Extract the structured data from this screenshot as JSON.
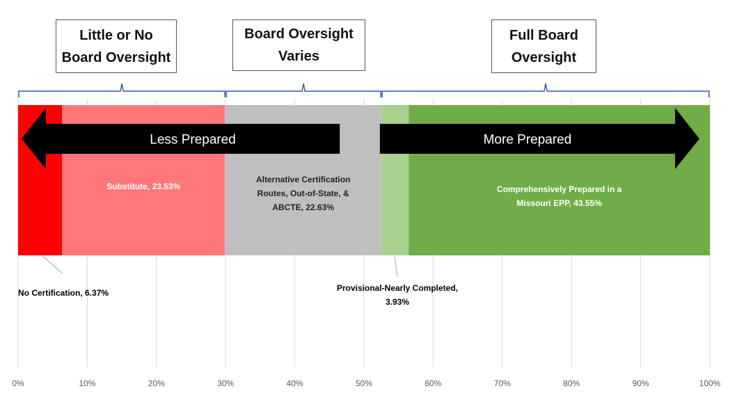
{
  "chart_data": {
    "type": "bar",
    "orientation": "horizontal-stacked",
    "categories": [
      ""
    ],
    "series": [
      {
        "name": "No Certification",
        "values": [
          6.37
        ],
        "label": "No Certification, 6.37%",
        "color": "#ff0000"
      },
      {
        "name": "Substitute",
        "values": [
          23.53
        ],
        "label": "Substitute, 23.53%",
        "color": "#ff7779"
      },
      {
        "name": "Alternative Certification Routes, Out-of-State, & ABCTE",
        "values": [
          22.63
        ],
        "label": "Alternative Certification Routes, Out-of-State, & ABCTE, 22.63%",
        "color": "#bfbfbf"
      },
      {
        "name": "Provisional-Nearly Completed",
        "values": [
          3.93
        ],
        "label": "Provisional-Nearly Completed, 3.93%",
        "color": "#a9d18e"
      },
      {
        "name": "Comprehensively Prepared in a Missouri EPP",
        "values": [
          43.55
        ],
        "label": "Comprehensively Prepared in a Missouri EPP, 43.55%",
        "color": "#70ad47"
      }
    ],
    "xlim": [
      0,
      100
    ],
    "x_ticks": [
      "0%",
      "10%",
      "20%",
      "30%",
      "40%",
      "50%",
      "60%",
      "70%",
      "80%",
      "90%",
      "100%"
    ],
    "grid": "vertical",
    "title": "",
    "xlabel": "",
    "ylabel": ""
  },
  "annotations": {
    "boxes": [
      {
        "lines": [
          "Little or No",
          "Board Oversight"
        ],
        "range": [
          0,
          30
        ]
      },
      {
        "lines": [
          "Board Oversight",
          "Varies"
        ],
        "range": [
          30,
          52.53
        ]
      },
      {
        "lines": [
          "Full Board",
          "Oversight"
        ],
        "range": [
          52.53,
          100
        ]
      }
    ],
    "arrows": [
      {
        "label": "Less Prepared",
        "direction": "left",
        "range": [
          0.5,
          46.5
        ]
      },
      {
        "label": "More Prepared",
        "direction": "right",
        "range": [
          52.3,
          98.5
        ]
      }
    ]
  },
  "colors": {
    "grid": "#d9d9d9",
    "brace": "#2e5fa3",
    "arrow": "#000000",
    "inner_label": "#ffffff",
    "outer_label": "#000000"
  }
}
